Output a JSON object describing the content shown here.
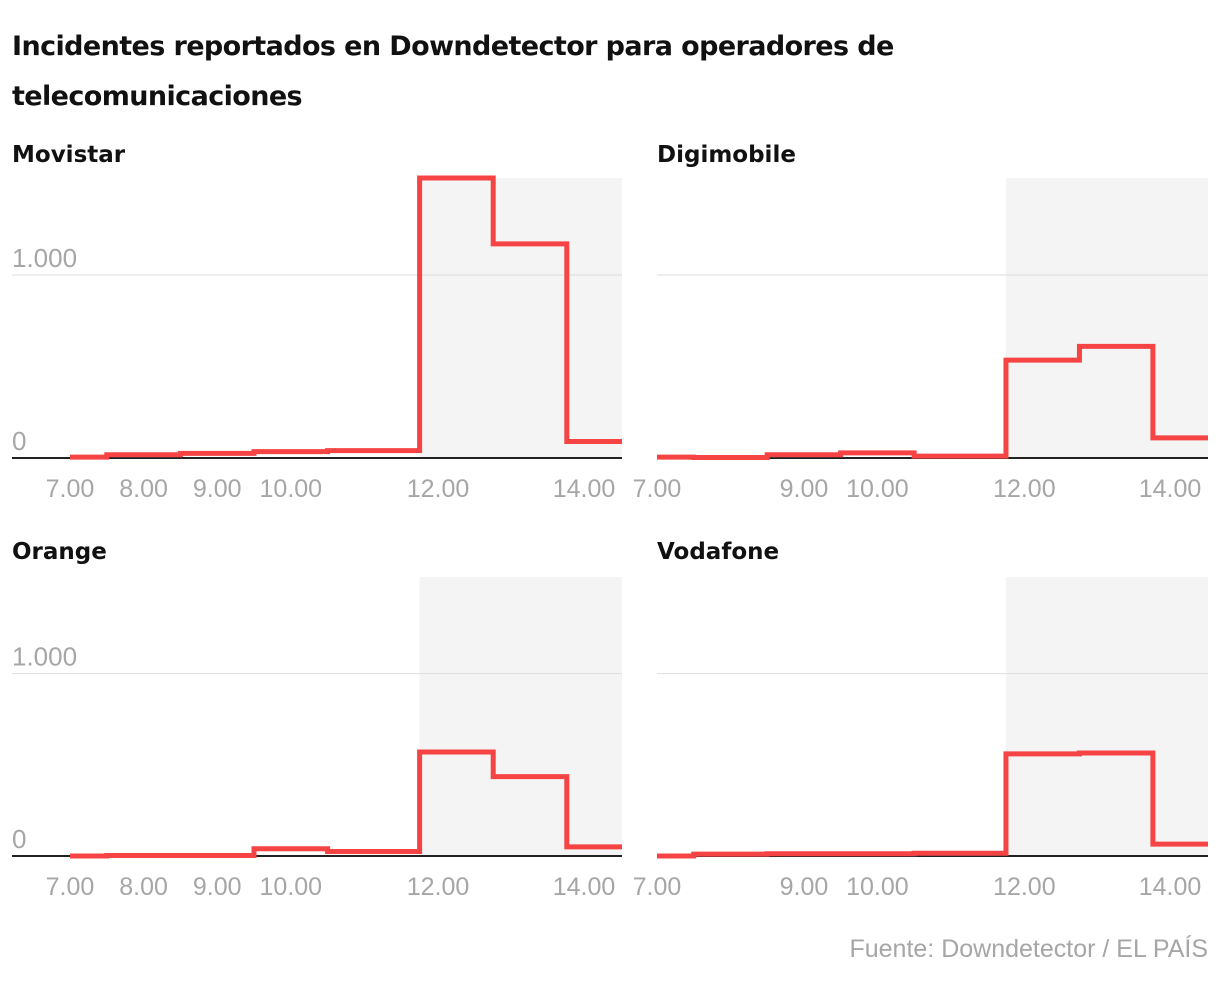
{
  "title": "Incidentes reportados en Downdetector para operadores de telecomunicaciones",
  "source": "Fuente: Downdetector / EL PAÍS",
  "colors": {
    "line": "#f64444",
    "shade": "#f4f4f4",
    "grid": "#dddddd",
    "axis": "#222222",
    "tick": "#a6a6a6"
  },
  "chart_data": [
    {
      "type": "line",
      "step": true,
      "title": "Movistar",
      "xlim": [
        7.0,
        14.5
      ],
      "ylim": [
        0,
        1530
      ],
      "yticks": [
        0,
        1000
      ],
      "ytick_labels": [
        "0",
        "1.000"
      ],
      "xticks": [
        7.0,
        8.0,
        9.0,
        10.0,
        12.0,
        14.0
      ],
      "xtick_labels": [
        "7.00",
        "8.00",
        "9.00",
        "10.00",
        "12.00",
        "14.00"
      ],
      "shade_x": [
        11.75,
        14.5
      ],
      "x": [
        7.0,
        7.5,
        8.5,
        9.5,
        10.5,
        11.75,
        12.75,
        13.75,
        14.5
      ],
      "y": [
        5,
        18,
        25,
        35,
        40,
        1530,
        1170,
        90,
        90
      ]
    },
    {
      "type": "line",
      "step": true,
      "title": "Digimobile",
      "xlim": [
        7.0,
        14.5
      ],
      "ylim": [
        0,
        1530
      ],
      "yticks": [
        0,
        1000
      ],
      "ytick_labels": [],
      "xticks": [
        7.0,
        9.0,
        10.0,
        12.0,
        14.0
      ],
      "xtick_labels": [
        "7.00",
        "9.00",
        "10.00",
        "12.00",
        "14.00"
      ],
      "shade_x": [
        11.75,
        14.5
      ],
      "x": [
        7.0,
        7.5,
        8.5,
        9.5,
        10.5,
        11.75,
        12.75,
        13.75,
        14.5
      ],
      "y": [
        5,
        3,
        18,
        28,
        10,
        535,
        610,
        110,
        110
      ]
    },
    {
      "type": "line",
      "step": true,
      "title": "Orange",
      "xlim": [
        7.0,
        14.5
      ],
      "ylim": [
        0,
        1530
      ],
      "yticks": [
        0,
        1000
      ],
      "ytick_labels": [
        "0",
        "1.000"
      ],
      "xticks": [
        7.0,
        8.0,
        9.0,
        10.0,
        12.0,
        14.0
      ],
      "xtick_labels": [
        "7.00",
        "8.00",
        "9.00",
        "10.00",
        "12.00",
        "14.00"
      ],
      "shade_x": [
        11.75,
        14.5
      ],
      "x": [
        7.0,
        7.5,
        8.5,
        9.5,
        10.5,
        11.75,
        12.75,
        13.75,
        14.5
      ],
      "y": [
        0,
        3,
        3,
        40,
        25,
        570,
        435,
        50,
        50
      ]
    },
    {
      "type": "line",
      "step": true,
      "title": "Vodafone",
      "xlim": [
        7.0,
        14.5
      ],
      "ylim": [
        0,
        1530
      ],
      "yticks": [
        0,
        1000
      ],
      "ytick_labels": [],
      "xticks": [
        7.0,
        9.0,
        10.0,
        12.0,
        14.0
      ],
      "xtick_labels": [
        "7.00",
        "9.00",
        "10.00",
        "12.00",
        "14.00"
      ],
      "shade_x": [
        11.75,
        14.5
      ],
      "x": [
        7.0,
        7.5,
        8.5,
        9.5,
        10.5,
        11.75,
        12.75,
        13.75,
        14.5
      ],
      "y": [
        0,
        10,
        12,
        12,
        15,
        560,
        565,
        65,
        65
      ]
    }
  ]
}
